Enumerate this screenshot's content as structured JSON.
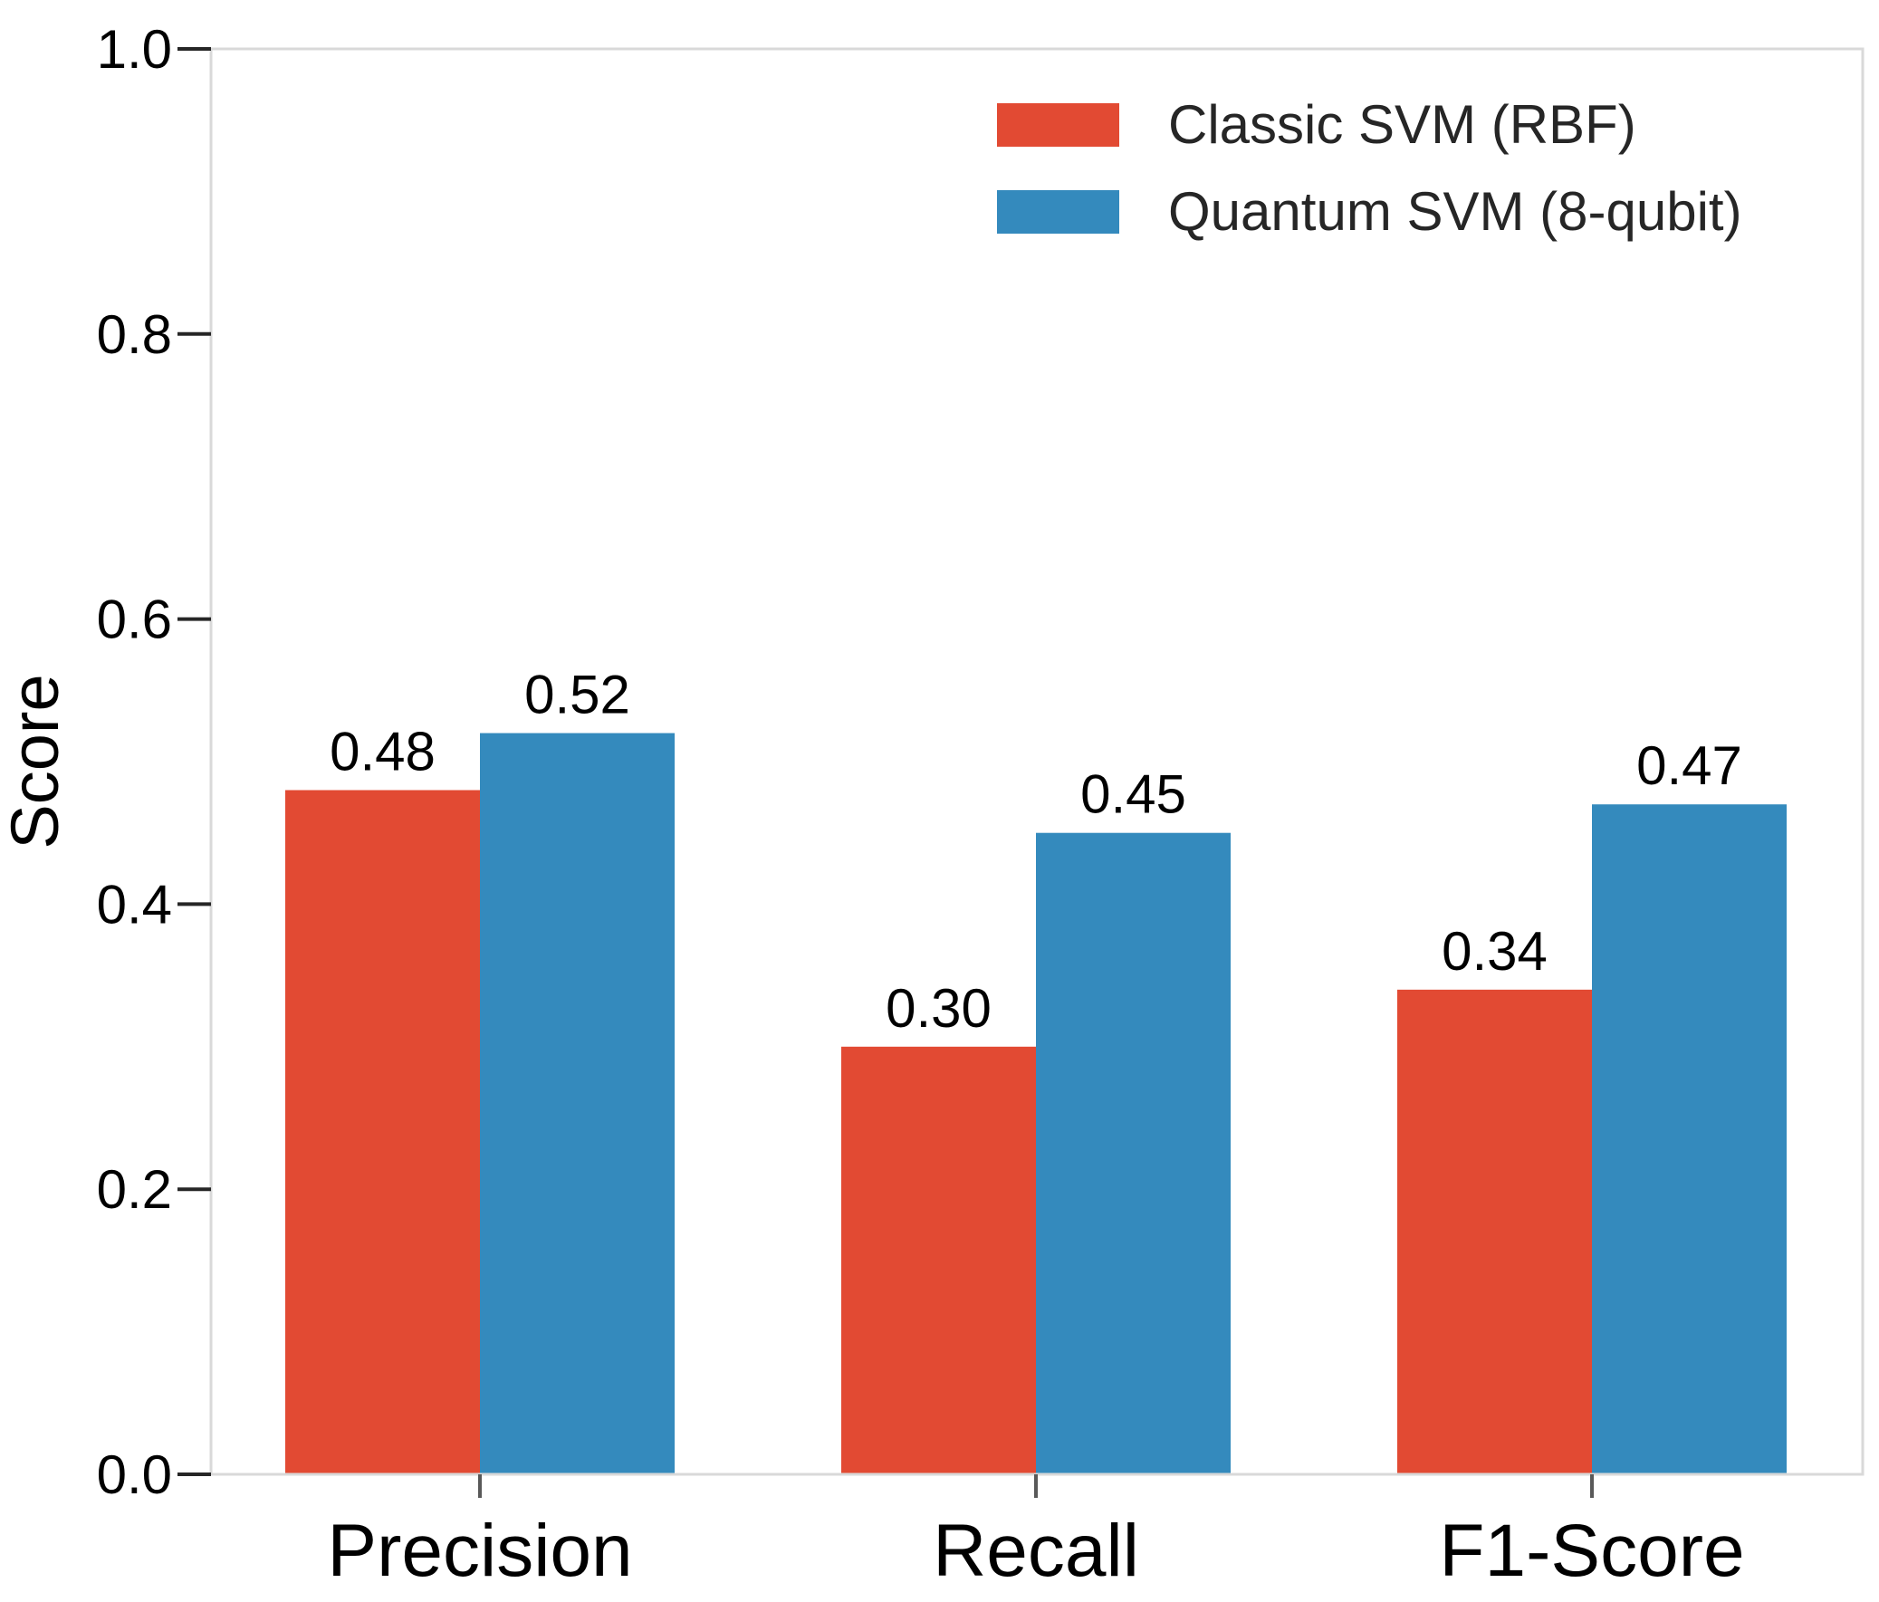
{
  "chart_data": {
    "type": "bar",
    "title": "",
    "xlabel": "",
    "ylabel": "Score",
    "ylim": [
      0.0,
      1.0
    ],
    "yticks": [
      0.0,
      0.2,
      0.4,
      0.6,
      0.8,
      1.0
    ],
    "ytick_labels": [
      "0.0",
      "0.2",
      "0.4",
      "0.6",
      "0.8",
      "1.0"
    ],
    "categories": [
      "Precision",
      "Recall",
      "F1-Score"
    ],
    "series": [
      {
        "name": "Classic SVM (RBF)",
        "color": "#E24A33",
        "values": [
          0.48,
          0.3,
          0.34
        ],
        "labels": [
          "0.48",
          "0.30",
          "0.34"
        ]
      },
      {
        "name": "Quantum SVM (8-qubit)",
        "color": "#348ABD",
        "values": [
          0.52,
          0.45,
          0.47
        ],
        "labels": [
          "0.52",
          "0.45",
          "0.47"
        ]
      }
    ],
    "legend_position": "top-right",
    "grid": false
  }
}
